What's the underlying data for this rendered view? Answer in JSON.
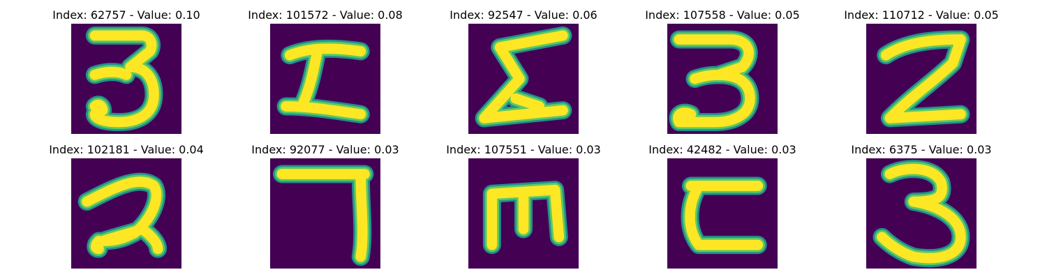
{
  "colors": {
    "background": "#440154",
    "stroke_edge": "#21918c",
    "stroke_mid": "#5ec962",
    "stroke_core": "#fde725"
  },
  "panels": [
    {
      "title": "Index: 62757 - Value: 0.10",
      "glyph": "3"
    },
    {
      "title": "Index: 101572 - Value: 0.08",
      "glyph": "Ɪ"
    },
    {
      "title": "Index: 92547 - Value: 0.06",
      "glyph": "Σ"
    },
    {
      "title": "Index: 107558 - Value: 0.05",
      "glyph": "3"
    },
    {
      "title": "Index: 110712 - Value: 0.05",
      "glyph": "2"
    },
    {
      "title": "Index: 102181 - Value: 0.04",
      "glyph": "2"
    },
    {
      "title": "Index: 92077 - Value: 0.03",
      "glyph": "7"
    },
    {
      "title": "Index: 107551 - Value: 0.03",
      "glyph": "m"
    },
    {
      "title": "Index: 42482 - Value: 0.03",
      "glyph": "c"
    },
    {
      "title": "Index: 6375 - Value: 0.03",
      "glyph": "3"
    }
  ]
}
